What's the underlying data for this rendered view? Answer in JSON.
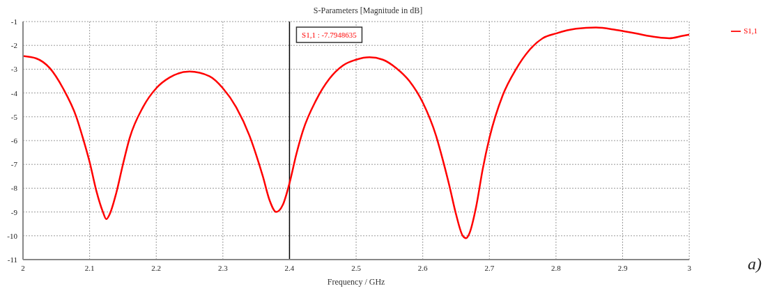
{
  "chart_data": {
    "type": "line",
    "title": "S-Parameters [Magnitude in dB]",
    "xlabel": "Frequency / GHz",
    "x": [
      2.0,
      2.02,
      2.04,
      2.06,
      2.08,
      2.09,
      2.1,
      2.11,
      2.12,
      2.125,
      2.13,
      2.14,
      2.15,
      2.16,
      2.18,
      2.2,
      2.22,
      2.25,
      2.28,
      2.3,
      2.32,
      2.34,
      2.35,
      2.36,
      2.37,
      2.38,
      2.39,
      2.4,
      2.41,
      2.42,
      2.44,
      2.46,
      2.48,
      2.5,
      2.52,
      2.54,
      2.56,
      2.58,
      2.6,
      2.62,
      2.63,
      2.64,
      2.65,
      2.66,
      2.665,
      2.67,
      2.68,
      2.69,
      2.7,
      2.72,
      2.74,
      2.76,
      2.78,
      2.8,
      2.83,
      2.86,
      2.89,
      2.92,
      2.95,
      2.97,
      2.99,
      3.0
    ],
    "series": [
      {
        "name": "S1,1",
        "color": "#ff0000",
        "values": [
          -2.45,
          -2.55,
          -2.95,
          -3.8,
          -5.0,
          -5.9,
          -6.9,
          -8.1,
          -9.0,
          -9.3,
          -9.1,
          -8.2,
          -7.0,
          -5.9,
          -4.6,
          -3.8,
          -3.35,
          -3.1,
          -3.3,
          -3.8,
          -4.6,
          -5.8,
          -6.6,
          -7.5,
          -8.5,
          -9.0,
          -8.7,
          -7.79,
          -6.6,
          -5.6,
          -4.3,
          -3.4,
          -2.85,
          -2.6,
          -2.5,
          -2.6,
          -2.95,
          -3.5,
          -4.4,
          -5.8,
          -6.8,
          -7.9,
          -9.1,
          -10.0,
          -10.1,
          -9.9,
          -8.8,
          -7.2,
          -5.9,
          -4.1,
          -3.0,
          -2.2,
          -1.7,
          -1.5,
          -1.3,
          -1.25,
          -1.35,
          -1.5,
          -1.65,
          -1.7,
          -1.6,
          -1.55
        ]
      }
    ],
    "xlim": [
      2,
      3
    ],
    "xticks": [
      2,
      2.1,
      2.2,
      2.3,
      2.4,
      2.5,
      2.6,
      2.7,
      2.8,
      2.9,
      3
    ],
    "ylim": [
      -11,
      -1
    ],
    "yticks": [
      -11,
      -10,
      -9,
      -8,
      -7,
      -6,
      -5,
      -4,
      -3,
      -2,
      -1
    ],
    "ref_lines": [
      {
        "axis": "x",
        "value": 2.4,
        "color": "#000000"
      }
    ],
    "annotations": [
      "S1,1 : -7.7948635",
      "a)"
    ],
    "grid": true,
    "legend": "top right",
    "marker": "none",
    "line_style": "solid"
  }
}
